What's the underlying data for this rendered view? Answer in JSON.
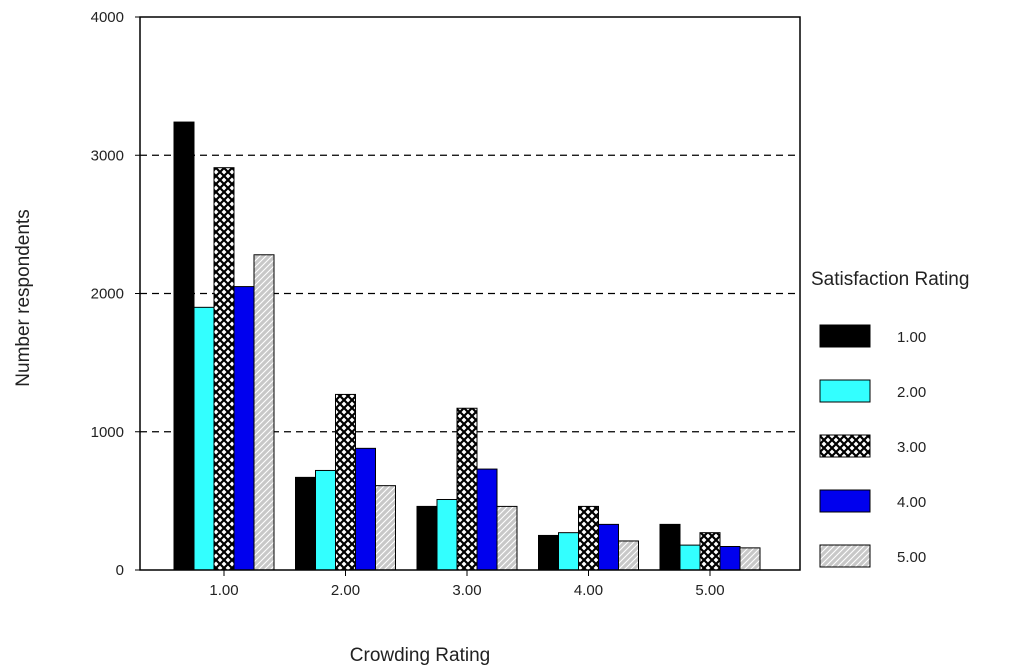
{
  "chart_data": {
    "type": "bar",
    "xlabel": "Crowding Rating",
    "ylabel": "Number respondents",
    "ylim": [
      0,
      4000
    ],
    "yticks": [
      0,
      1000,
      2000,
      3000,
      4000
    ],
    "grid": "dashed horizontal at 1000, 2000, 3000",
    "legend_title": "Satisfaction Rating",
    "legend_position": "right",
    "categories": [
      "1.00",
      "2.00",
      "3.00",
      "4.00",
      "5.00"
    ],
    "series": [
      {
        "name": "1.00",
        "color": "#000000",
        "pattern": "solid",
        "values": [
          3240,
          670,
          460,
          250,
          330
        ]
      },
      {
        "name": "2.00",
        "color": "#33ffff",
        "pattern": "solid",
        "values": [
          1900,
          720,
          510,
          270,
          180
        ]
      },
      {
        "name": "3.00",
        "color": "#000000",
        "pattern": "crosshatch",
        "values": [
          2910,
          1270,
          1170,
          460,
          270
        ]
      },
      {
        "name": "4.00",
        "color": "#0000ee",
        "pattern": "solid",
        "values": [
          2050,
          880,
          730,
          330,
          170
        ]
      },
      {
        "name": "5.00",
        "color": "#c8c8c8",
        "pattern": "diagonal-hatch",
        "values": [
          2280,
          610,
          460,
          210,
          160
        ]
      }
    ]
  }
}
